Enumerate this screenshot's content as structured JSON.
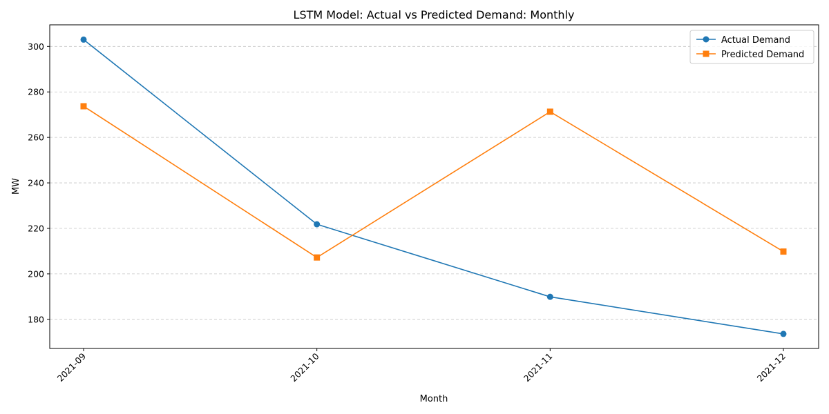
{
  "chart_data": {
    "type": "line",
    "title": "LSTM Model: Actual vs Predicted Demand: Monthly",
    "xlabel": "Month",
    "ylabel": "MW",
    "categories": [
      "2021-09",
      "2021-10",
      "2021-11",
      "2021-12"
    ],
    "series": [
      {
        "name": "Actual Demand",
        "values": [
          303.0,
          221.8,
          189.9,
          173.6
        ],
        "color": "#1f77b4",
        "marker": "circle"
      },
      {
        "name": "Predicted Demand",
        "values": [
          273.7,
          207.2,
          271.3,
          209.8
        ],
        "color": "#ff7f0e",
        "marker": "square"
      }
    ],
    "ylim": [
      167.2,
      309.5
    ],
    "yticks": [
      180,
      200,
      220,
      240,
      260,
      280,
      300
    ],
    "ytick_labels": [
      "180",
      "200",
      "220",
      "240",
      "260",
      "280",
      "300"
    ],
    "xtick_rotation": 45,
    "grid": "y-dashed",
    "legend_position": "top-right"
  }
}
